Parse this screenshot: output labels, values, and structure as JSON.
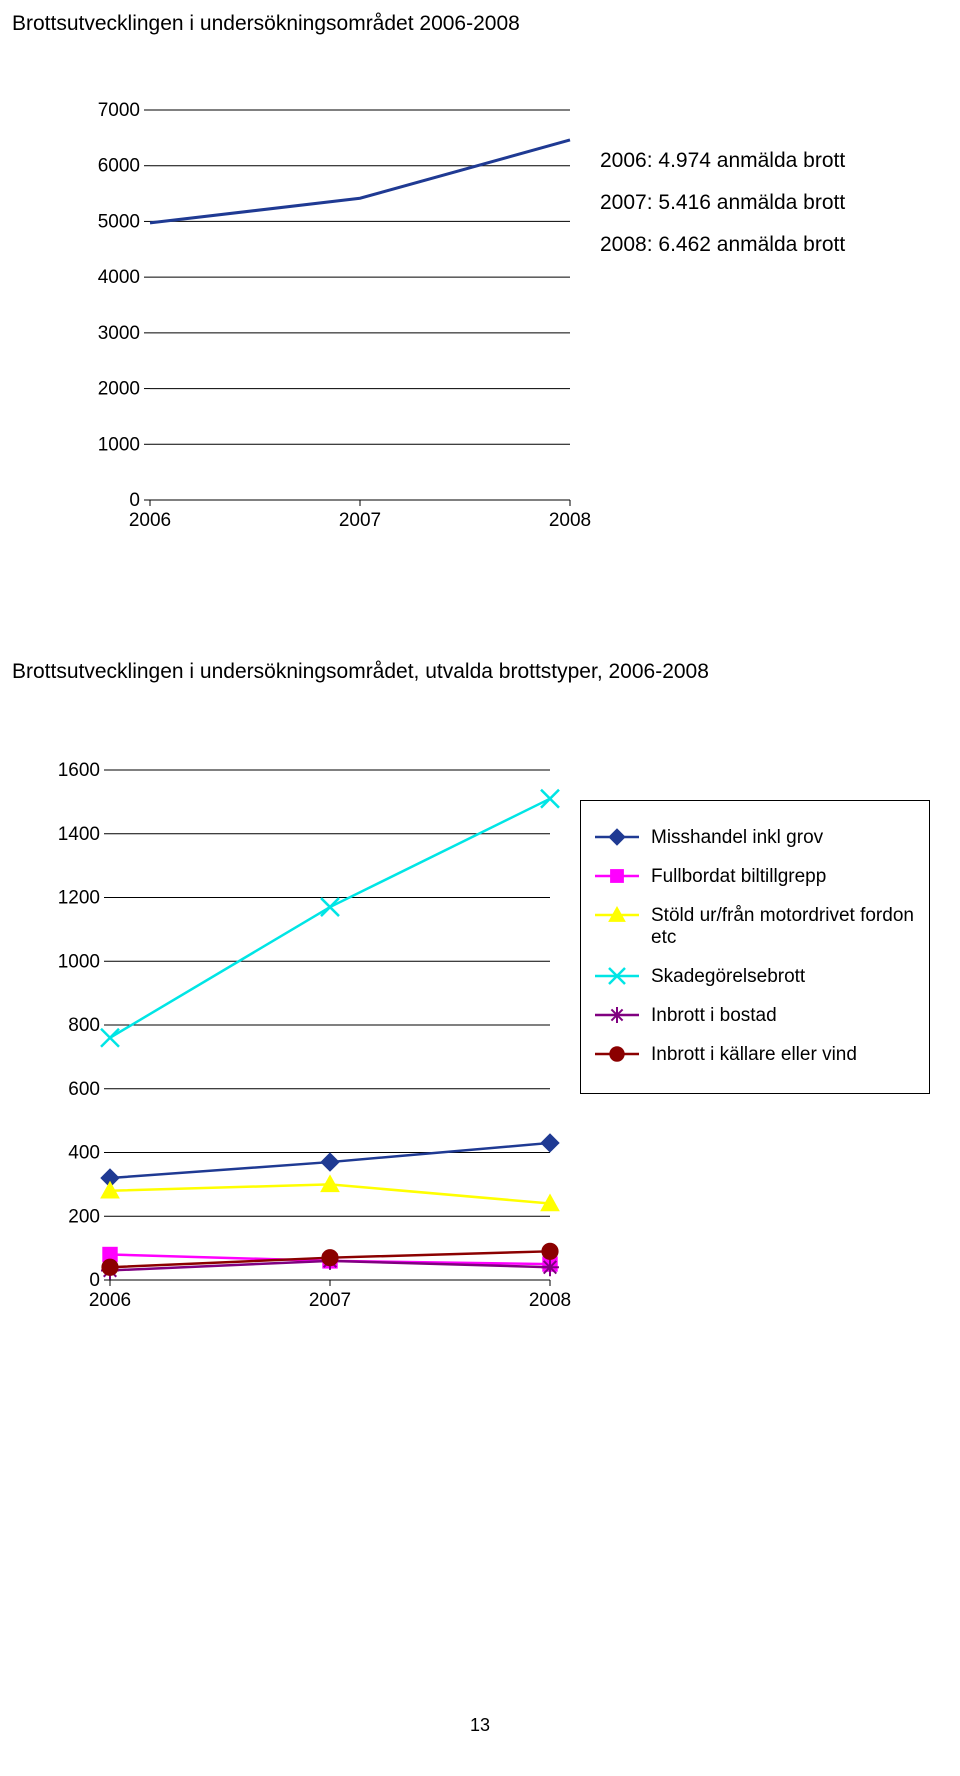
{
  "title1": "Brottsutvecklingen i undersökningsområdet 2006-2008",
  "chart1": {
    "type": "line",
    "years": [
      "2006",
      "2007",
      "2008"
    ],
    "values": [
      4974,
      5416,
      6462
    ],
    "ymin": 0,
    "ymax": 7000,
    "ystep": 1000,
    "yticks": [
      "0",
      "1000",
      "2000",
      "3000",
      "4000",
      "5000",
      "6000",
      "7000"
    ],
    "line_color": "#1f3a93",
    "grid_color": "#000000",
    "tick_color": "#000000",
    "background_color": "#ffffff",
    "label_fontsize": 19
  },
  "annotations": {
    "line1": "2006: 4.974 anmälda brott",
    "line2": "2007: 5.416 anmälda brott",
    "line3": "2008: 6.462 anmälda brott"
  },
  "title2": "Brottsutvecklingen i undersökningsområdet, utvalda brottstyper, 2006-2008",
  "chart2": {
    "type": "line-multi",
    "years": [
      "2006",
      "2007",
      "2008"
    ],
    "ymin": 0,
    "ymax": 1600,
    "ystep": 200,
    "yticks": [
      "0",
      "200",
      "400",
      "600",
      "800",
      "1000",
      "1200",
      "1400",
      "1600"
    ],
    "grid_color": "#000000",
    "tick_color": "#000000",
    "background_color": "#ffffff",
    "label_fontsize": 19,
    "series": [
      {
        "name": "Misshandel inkl grov",
        "color": "#1f3a93",
        "marker": "diamond",
        "values": [
          320,
          370,
          430
        ]
      },
      {
        "name": "Fullbordat biltillgrepp",
        "color": "#ff00ff",
        "marker": "square",
        "values": [
          80,
          60,
          50
        ]
      },
      {
        "name": "Stöld ur/från motordrivet fordon etc",
        "color": "#ffff00",
        "marker": "triangle",
        "values": [
          280,
          300,
          240
        ]
      },
      {
        "name": "Skadegörelsebrott",
        "color": "#00e5e5",
        "marker": "x",
        "values": [
          760,
          1170,
          1510
        ]
      },
      {
        "name": "Inbrott i bostad",
        "color": "#800080",
        "marker": "star",
        "values": [
          30,
          60,
          40
        ]
      },
      {
        "name": "Inbrott i källare eller vind",
        "color": "#8b0000",
        "marker": "circle",
        "values": [
          40,
          70,
          90
        ]
      }
    ]
  },
  "page_number": "13"
}
